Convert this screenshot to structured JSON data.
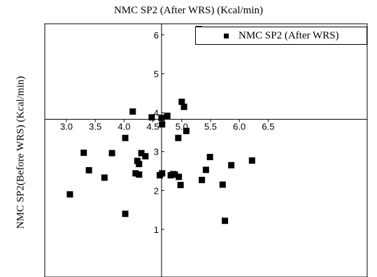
{
  "chart_data": {
    "type": "scatter",
    "title": "NMC SP2 (After WRS) (Kcal/min)",
    "xlabel": "",
    "ylabel": "NMC SP2(Before WRS) (Kcal/min)",
    "xlim": [
      2.7,
      6.5
    ],
    "ylim": [
      0.0,
      6.8
    ],
    "x_ticks": [
      "3.0",
      "3.5",
      "4.0",
      "4.5",
      "5.0",
      "5.5",
      "6.0",
      "6.5"
    ],
    "y_ticks": [
      "1",
      "2",
      "3",
      "4",
      "5",
      "6"
    ],
    "grid": false,
    "legend_position": "top-right",
    "series": [
      {
        "name": "NMC SP2 (After WRS)",
        "color": "#000000",
        "x": [
          5.3,
          5.0,
          5.04,
          4.15,
          4.75,
          4.48,
          4.65,
          4.66,
          4.94,
          4.02,
          5.08,
          3.3,
          3.39,
          3.79,
          3.66,
          4.3,
          4.23,
          4.26,
          4.37,
          4.26,
          4.2,
          4.62,
          4.66,
          4.81,
          4.85,
          4.88,
          4.95,
          4.98,
          5.49,
          5.42,
          5.35,
          5.86,
          5.71,
          6.22,
          3.06,
          4.02,
          5.75
        ],
        "y": [
          6.15,
          4.28,
          4.15,
          4.03,
          3.92,
          3.88,
          3.87,
          3.7,
          3.35,
          3.35,
          3.53,
          2.97,
          2.52,
          2.96,
          2.33,
          2.96,
          2.76,
          2.68,
          2.88,
          2.41,
          2.44,
          2.39,
          2.44,
          2.39,
          2.42,
          2.41,
          2.35,
          2.14,
          2.86,
          2.53,
          2.27,
          2.65,
          2.15,
          2.77,
          1.9,
          1.4,
          1.22
        ]
      }
    ]
  }
}
